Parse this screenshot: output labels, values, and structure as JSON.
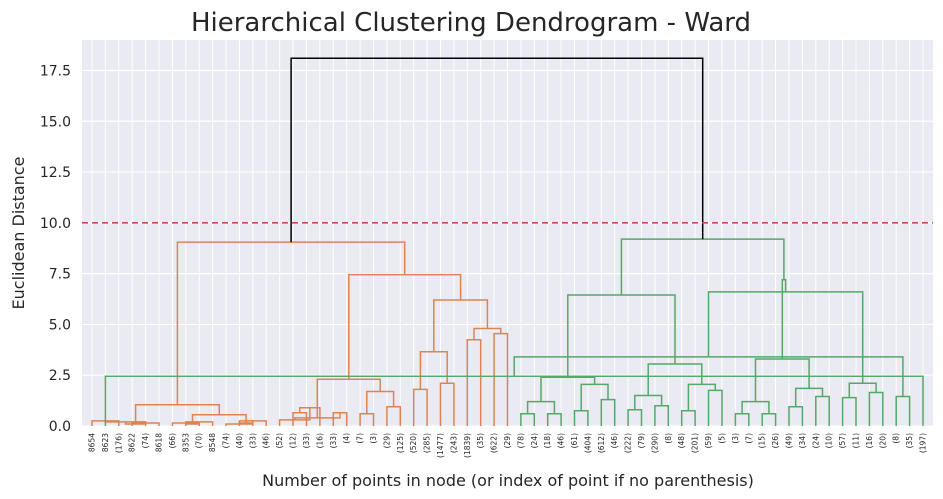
{
  "chart_data": {
    "type": "dendrogram",
    "title": "Hierarchical Clustering Dendrogram - Ward",
    "xlabel": "Number of points in node (or index of point if no parenthesis)",
    "ylabel": "Euclidean Distance",
    "ylim": [
      0,
      19.0
    ],
    "yticks": [
      "0.0",
      "2.5",
      "5.0",
      "7.5",
      "10.0",
      "12.5",
      "15.0",
      "17.5"
    ],
    "grid": true,
    "threshold": {
      "value": 10.0,
      "color": "#c44e52",
      "style": "dashed"
    },
    "leaf_labels": [
      "8654",
      "8623",
      "(176)",
      "8622",
      "(74)",
      "8618",
      "(66)",
      "8353",
      "(70)",
      "8548",
      "(74)",
      "(40)",
      "(33)",
      "(46)",
      "(52)",
      "(12)",
      "(33)",
      "(16)",
      "(33)",
      "(4)",
      "(7)",
      "(3)",
      "(29)",
      "(125)",
      "(520)",
      "(285)",
      "(1477)",
      "(243)",
      "(1839)",
      "(35)",
      "(622)",
      "(29)",
      "(78)",
      "(24)",
      "(18)",
      "(46)",
      "(61)",
      "(404)",
      "(612)",
      "(46)",
      "(222)",
      "(79)",
      "(290)",
      "(8)",
      "(48)",
      "(201)",
      "(59)",
      "(5)",
      "(3)",
      "(7)",
      "(15)",
      "(26)",
      "(49)",
      "(34)",
      "(24)",
      "(10)",
      "(57)",
      "(11)",
      "(16)",
      "(20)",
      "(8)",
      "(35)",
      "(197)"
    ],
    "colors": {
      "cluster1": "#dd8452",
      "cluster2": "#55a868",
      "above": "#000000"
    },
    "merges": [
      {
        "l": 0,
        "r": 2,
        "h": 0.25,
        "c": "cluster1"
      },
      {
        "l": 3,
        "r": 5,
        "h": 0.15,
        "c": "cluster1"
      },
      {
        "l": 63,
        "r": 64,
        "h": 0.2,
        "c": "cluster1"
      },
      {
        "l": 65,
        "r": 4,
        "h": 0.1,
        "c": "cluster1"
      },
      {
        "l": 6,
        "r": 8,
        "h": 0.15,
        "c": "cluster1"
      },
      {
        "l": 7,
        "r": 9,
        "h": 0.2,
        "c": "cluster1"
      },
      {
        "l": 67,
        "r": 68,
        "h": 0.1,
        "c": "cluster1"
      },
      {
        "l": 10,
        "r": 12,
        "h": 0.1,
        "c": "cluster1"
      },
      {
        "l": 11,
        "r": 13,
        "h": 0.25,
        "c": "cluster1"
      },
      {
        "l": 70,
        "r": 71,
        "h": 0.15,
        "c": "cluster1"
      },
      {
        "l": 69,
        "r": 72,
        "h": 0.55,
        "c": "cluster1"
      },
      {
        "l": 66,
        "r": 73,
        "h": 1.05,
        "c": "cluster1"
      },
      {
        "l": 15,
        "r": 16,
        "h": 0.65,
        "c": "cluster1"
      },
      {
        "l": 75,
        "r": 17,
        "h": 0.9,
        "c": "cluster1"
      },
      {
        "l": 14,
        "r": 76,
        "h": 0.3,
        "c": "cluster1"
      },
      {
        "l": 18,
        "r": 19,
        "h": 0.65,
        "c": "cluster1"
      },
      {
        "l": 20,
        "r": 21,
        "h": 0.6,
        "c": "cluster1"
      },
      {
        "l": 22,
        "r": 23,
        "h": 0.95,
        "c": "cluster1"
      },
      {
        "l": 79,
        "r": 80,
        "h": 1.7,
        "c": "cluster1"
      },
      {
        "l": 77,
        "r": 78,
        "h": 0.4,
        "c": "cluster1"
      },
      {
        "l": 82,
        "r": 81,
        "h": 2.3,
        "c": "cluster1"
      },
      {
        "l": 24,
        "r": 25,
        "h": 1.8,
        "c": "cluster1"
      },
      {
        "l": 26,
        "r": 27,
        "h": 2.1,
        "c": "cluster1"
      },
      {
        "l": 84,
        "r": 85,
        "h": 3.65,
        "c": "cluster1"
      },
      {
        "l": 28,
        "r": 29,
        "h": 4.25,
        "c": "cluster1"
      },
      {
        "l": 30,
        "r": 31,
        "h": 4.55,
        "c": "cluster1"
      },
      {
        "l": 87,
        "r": 88,
        "h": 4.8,
        "c": "cluster1"
      },
      {
        "l": 86,
        "r": 89,
        "h": 6.2,
        "c": "cluster1"
      },
      {
        "l": 83,
        "r": 90,
        "h": 7.45,
        "c": "cluster1"
      },
      {
        "l": 74,
        "r": 91,
        "h": 9.05,
        "c": "cluster1"
      },
      {
        "l": 32,
        "r": 33,
        "h": 0.6,
        "c": "cluster2"
      },
      {
        "l": 34,
        "r": 35,
        "h": 0.6,
        "c": "cluster2"
      },
      {
        "l": 93,
        "r": 94,
        "h": 1.2,
        "c": "cluster2"
      },
      {
        "l": 36,
        "r": 37,
        "h": 0.75,
        "c": "cluster2"
      },
      {
        "l": 38,
        "r": 39,
        "h": 1.3,
        "c": "cluster2"
      },
      {
        "l": 96,
        "r": 97,
        "h": 2.05,
        "c": "cluster2"
      },
      {
        "l": 95,
        "r": 98,
        "h": 2.4,
        "c": "cluster2"
      },
      {
        "l": 40,
        "r": 41,
        "h": 0.8,
        "c": "cluster2"
      },
      {
        "l": 42,
        "r": 43,
        "h": 1.0,
        "c": "cluster2"
      },
      {
        "l": 100,
        "r": 101,
        "h": 1.5,
        "c": "cluster2"
      },
      {
        "l": 44,
        "r": 45,
        "h": 0.75,
        "c": "cluster2"
      },
      {
        "l": 46,
        "r": 47,
        "h": 1.75,
        "c": "cluster2"
      },
      {
        "l": 103,
        "r": 104,
        "h": 2.05,
        "c": "cluster2"
      },
      {
        "l": 102,
        "r": 105,
        "h": 3.05,
        "c": "cluster2"
      },
      {
        "l": 99,
        "r": 106,
        "h": 6.45,
        "c": "cluster2"
      },
      {
        "l": 48,
        "r": 49,
        "h": 0.6,
        "c": "cluster2"
      },
      {
        "l": 50,
        "r": 51,
        "h": 0.6,
        "c": "cluster2"
      },
      {
        "l": 108,
        "r": 109,
        "h": 1.2,
        "c": "cluster2"
      },
      {
        "l": 52,
        "r": 53,
        "h": 0.95,
        "c": "cluster2"
      },
      {
        "l": 54,
        "r": 55,
        "h": 1.45,
        "c": "cluster2"
      },
      {
        "l": 111,
        "r": 112,
        "h": 1.85,
        "c": "cluster2"
      },
      {
        "l": 110,
        "r": 113,
        "h": 3.3,
        "c": "cluster2"
      },
      {
        "l": 56,
        "r": 57,
        "h": 1.4,
        "c": "cluster2"
      },
      {
        "l": 58,
        "r": 59,
        "h": 1.65,
        "c": "cluster2"
      },
      {
        "l": 115,
        "r": 116,
        "h": 2.1,
        "c": "cluster2"
      },
      {
        "l": 60,
        "r": 61,
        "h": 1.45,
        "c": "cluster2"
      },
      {
        "l": 62,
        "r": 1,
        "h": 2.45,
        "c": "cluster2"
      },
      {
        "l": 118,
        "r": 119,
        "h": 3.4,
        "c": "cluster2"
      },
      {
        "l": 117,
        "r": 120,
        "h": 6.6,
        "c": "cluster2"
      },
      {
        "l": 114,
        "r": 121,
        "h": 7.2,
        "c": "cluster2"
      },
      {
        "l": 107,
        "r": 122,
        "h": 9.2,
        "c": "cluster2"
      },
      {
        "l": 92,
        "r": 123,
        "h": 18.1,
        "c": "above"
      }
    ]
  }
}
